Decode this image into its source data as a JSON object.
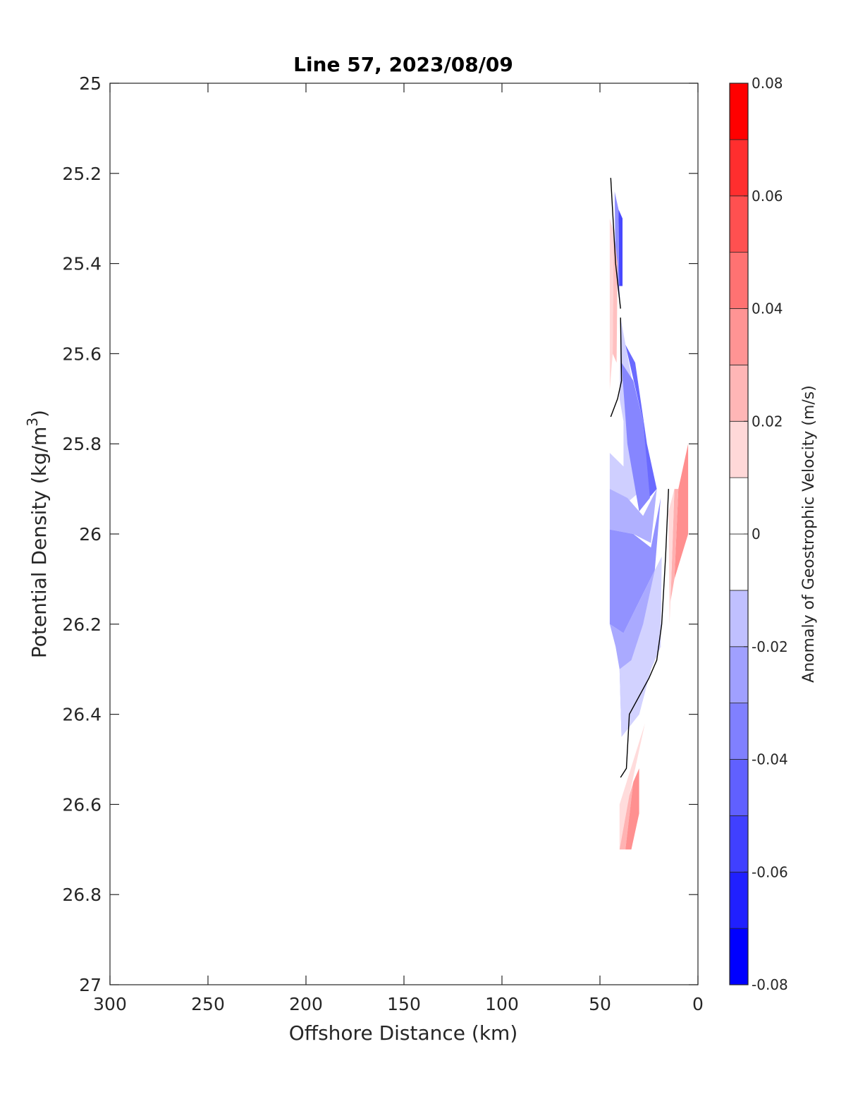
{
  "chart_data": {
    "type": "contour",
    "title": "Line 57, 2023/08/09",
    "xlabel": "Offshore Distance (km)",
    "ylabel_main": "Potential Density (kg/m",
    "ylabel_sup": "3",
    "ylabel_tail": ")",
    "xlim": [
      300,
      0
    ],
    "ylim": [
      27,
      25
    ],
    "x_reversed": true,
    "y_reversed": true,
    "xticks": [
      300,
      250,
      200,
      150,
      100,
      50,
      0
    ],
    "yticks": [
      25,
      25.2,
      25.4,
      25.6,
      25.8,
      26,
      26.2,
      26.4,
      26.6,
      26.8,
      27
    ],
    "x_tick_labels": [
      "300",
      "250",
      "200",
      "150",
      "100",
      "50",
      "0"
    ],
    "y_tick_labels": [
      "25",
      "25.2",
      "25.4",
      "25.6",
      "25.8",
      "26",
      "26.2",
      "26.4",
      "26.6",
      "26.8",
      "27"
    ],
    "grid": false,
    "colorbar": {
      "label": "Anomaly of Geostrophic Velocity (m/s)",
      "range": [
        -0.08,
        0.08
      ],
      "ticks": [
        0.08,
        0.06,
        0.04,
        0.02,
        0,
        -0.02,
        -0.04,
        -0.06,
        -0.08
      ],
      "tick_labels": [
        "0.08",
        "0.06",
        "0.04",
        "0.02",
        "0",
        "-0.02",
        "-0.04",
        "-0.06",
        "-0.08"
      ],
      "levels": [
        {
          "from": -0.08,
          "to": -0.07,
          "color": "#0000ff"
        },
        {
          "from": -0.07,
          "to": -0.06,
          "color": "#2020ff"
        },
        {
          "from": -0.06,
          "to": -0.05,
          "color": "#4040ff"
        },
        {
          "from": -0.05,
          "to": -0.04,
          "color": "#6060ff"
        },
        {
          "from": -0.04,
          "to": -0.03,
          "color": "#8080ff"
        },
        {
          "from": -0.03,
          "to": -0.02,
          "color": "#a0a0ff"
        },
        {
          "from": -0.02,
          "to": -0.01,
          "color": "#c0c0ff"
        },
        {
          "from": -0.01,
          "to": 0.0,
          "color": "#ffffff"
        },
        {
          "from": 0.0,
          "to": 0.01,
          "color": "#ffffff"
        },
        {
          "from": 0.01,
          "to": 0.02,
          "color": "#ffd8d8"
        },
        {
          "from": 0.02,
          "to": 0.03,
          "color": "#ffb6b6"
        },
        {
          "from": 0.03,
          "to": 0.04,
          "color": "#ff9494"
        },
        {
          "from": 0.04,
          "to": 0.05,
          "color": "#ff7272"
        },
        {
          "from": 0.05,
          "to": 0.06,
          "color": "#ff5050"
        },
        {
          "from": 0.06,
          "to": 0.07,
          "color": "#ff2e2e"
        },
        {
          "from": 0.07,
          "to": 0.08,
          "color": "#ff0000"
        }
      ]
    },
    "contour_regions": [
      {
        "value": -0.055,
        "color": "#4848ff",
        "points": [
          [
            40.5,
            25.28
          ],
          [
            38.5,
            25.3
          ],
          [
            38.5,
            25.45
          ],
          [
            40.2,
            25.45
          ]
        ]
      },
      {
        "value": -0.035,
        "color": "#9090ff",
        "points": [
          [
            42.5,
            25.24
          ],
          [
            40.5,
            25.28
          ],
          [
            40.2,
            25.45
          ],
          [
            39.5,
            25.5
          ],
          [
            42.0,
            25.42
          ]
        ]
      },
      {
        "value": 0.015,
        "color": "#ffd6d6",
        "points": [
          [
            45.0,
            25.3
          ],
          [
            43.0,
            25.33
          ],
          [
            43.5,
            25.6
          ],
          [
            45.0,
            25.68
          ]
        ]
      },
      {
        "value": 0.025,
        "color": "#ffc0c0",
        "points": [
          [
            43.0,
            25.33
          ],
          [
            41.0,
            25.4
          ],
          [
            41.5,
            25.62
          ],
          [
            43.5,
            25.6
          ]
        ]
      },
      {
        "value": -0.015,
        "color": "#cfcfff",
        "points": [
          [
            39.5,
            25.52
          ],
          [
            40.0,
            25.7
          ],
          [
            38.0,
            25.75
          ],
          [
            38.0,
            25.85
          ],
          [
            45.0,
            25.82
          ],
          [
            45.0,
            25.9
          ],
          [
            36.0,
            25.93
          ],
          [
            28.0,
            25.9
          ],
          [
            34.0,
            25.65
          ]
        ]
      },
      {
        "value": -0.045,
        "color": "#6a6aff",
        "points": [
          [
            37.0,
            25.58
          ],
          [
            32.0,
            25.62
          ],
          [
            26.0,
            25.8
          ],
          [
            21.0,
            25.9
          ],
          [
            25.0,
            25.92
          ],
          [
            28.0,
            25.75
          ]
        ]
      },
      {
        "value": -0.035,
        "color": "#8686ff",
        "points": [
          [
            39.0,
            25.62
          ],
          [
            36.0,
            25.8
          ],
          [
            30.0,
            25.95
          ],
          [
            24.5,
            25.92
          ],
          [
            28.0,
            25.75
          ],
          [
            33.0,
            25.66
          ]
        ]
      },
      {
        "value": -0.025,
        "color": "#b0b0ff",
        "points": [
          [
            45.0,
            25.9
          ],
          [
            36.0,
            25.92
          ],
          [
            28.0,
            25.96
          ],
          [
            21.0,
            25.9
          ],
          [
            24.0,
            26.02
          ],
          [
            33.0,
            26.0
          ],
          [
            45.0,
            25.99
          ]
        ]
      },
      {
        "value": -0.035,
        "color": "#9292ff",
        "points": [
          [
            45.0,
            25.99
          ],
          [
            33.0,
            26.0
          ],
          [
            24.0,
            26.03
          ],
          [
            19.0,
            25.92
          ],
          [
            22.0,
            26.08
          ],
          [
            30.0,
            26.15
          ],
          [
            38.0,
            26.22
          ],
          [
            45.0,
            26.2
          ]
        ]
      },
      {
        "value": -0.025,
        "color": "#aaaaff",
        "points": [
          [
            45.0,
            26.2
          ],
          [
            38.0,
            26.22
          ],
          [
            30.0,
            26.15
          ],
          [
            22.0,
            26.08
          ],
          [
            19.0,
            26.25
          ],
          [
            24.0,
            26.3
          ],
          [
            30.0,
            26.4
          ],
          [
            39.0,
            26.45
          ],
          [
            40.0,
            26.3
          ],
          [
            42.0,
            26.25
          ]
        ]
      },
      {
        "value": -0.015,
        "color": "#d2d2ff",
        "points": [
          [
            40.0,
            26.3
          ],
          [
            39.0,
            26.45
          ],
          [
            30.0,
            26.4
          ],
          [
            24.0,
            26.3
          ],
          [
            19.0,
            26.25
          ],
          [
            18.5,
            26.05
          ],
          [
            22.0,
            26.08
          ],
          [
            28.0,
            26.2
          ],
          [
            34.0,
            26.28
          ]
        ]
      },
      {
        "value": 0.035,
        "color": "#ff8f8f",
        "points": [
          [
            5.0,
            25.8
          ],
          [
            10.0,
            25.9
          ],
          [
            12.0,
            26.1
          ],
          [
            5.0,
            26.0
          ]
        ]
      },
      {
        "value": 0.025,
        "color": "#ffb0b0",
        "points": [
          [
            10.0,
            25.9
          ],
          [
            12.0,
            25.9
          ],
          [
            14.0,
            26.15
          ],
          [
            12.0,
            26.1
          ]
        ]
      },
      {
        "value": 0.015,
        "color": "#ffdada",
        "points": [
          [
            12.0,
            25.9
          ],
          [
            15.0,
            25.95
          ],
          [
            14.5,
            26.2
          ],
          [
            14.0,
            26.15
          ]
        ]
      },
      {
        "value": 0.015,
        "color": "#ffdcdc",
        "points": [
          [
            27.0,
            26.42
          ],
          [
            40.0,
            26.6
          ],
          [
            40.0,
            26.7
          ],
          [
            35.0,
            26.58
          ]
        ]
      },
      {
        "value": 0.025,
        "color": "#ffb3b3",
        "points": [
          [
            35.0,
            26.58
          ],
          [
            40.0,
            26.7
          ],
          [
            37.0,
            26.7
          ],
          [
            33.0,
            26.55
          ]
        ]
      },
      {
        "value": 0.035,
        "color": "#ff9090",
        "points": [
          [
            33.0,
            26.55
          ],
          [
            37.0,
            26.7
          ],
          [
            34.0,
            26.7
          ],
          [
            30.0,
            26.62
          ],
          [
            30.0,
            26.52
          ]
        ]
      }
    ],
    "zero_contours": [
      [
        [
          44.5,
          25.21
        ],
        [
          42.0,
          25.4
        ],
        [
          39.5,
          25.5
        ]
      ],
      [
        [
          39.5,
          25.52
        ],
        [
          39.0,
          25.66
        ],
        [
          41.0,
          25.7
        ],
        [
          44.5,
          25.74
        ]
      ],
      [
        [
          15.0,
          25.9
        ],
        [
          16.5,
          26.05
        ],
        [
          18.5,
          26.2
        ],
        [
          21.0,
          26.28
        ],
        [
          25.0,
          26.32
        ],
        [
          35.0,
          26.4
        ],
        [
          36.5,
          26.52
        ],
        [
          39.5,
          26.54
        ]
      ]
    ]
  }
}
